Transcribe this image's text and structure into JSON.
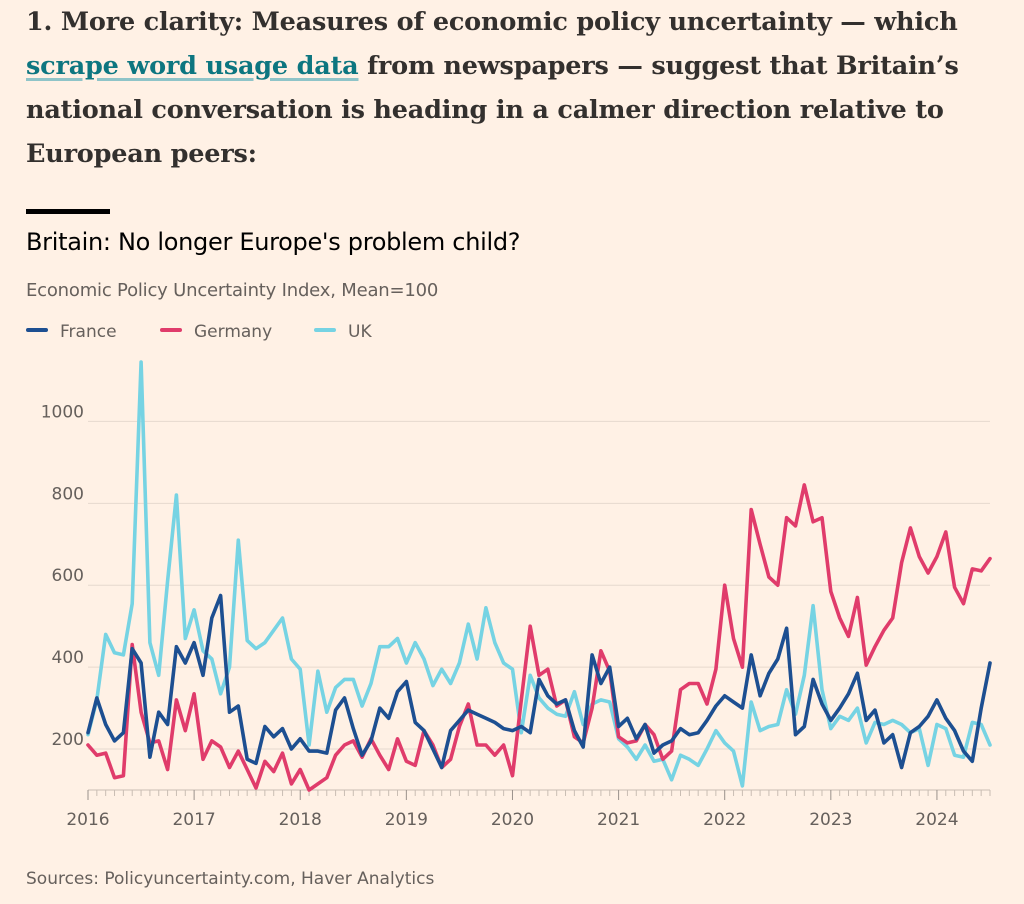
{
  "intro": {
    "before_link": "1. More clarity: Measures of economic policy uncertainty — which ",
    "link_text": "scrape word usage data",
    "after_link": " from newspapers — suggest that Britain’s national conversation is heading in a calmer direction relative to European peers:"
  },
  "chart_data": {
    "type": "line",
    "title": "Britain: No longer Europe's problem child?",
    "subtitle": "Economic Policy Uncertainty Index, Mean=100",
    "source": "Sources: Policyuncertainty.com, Haver Analytics",
    "xlim": [
      2016.0,
      2024.5
    ],
    "ylim": [
      100,
      1150
    ],
    "yticks": [
      200,
      400,
      600,
      800,
      1000
    ],
    "xticks": [
      2016,
      2017,
      2018,
      2019,
      2020,
      2021,
      2022,
      2023,
      2024
    ],
    "grid": true,
    "legend_position": "top-left",
    "x_start": 2016.0,
    "x_step_months": 1,
    "series": [
      {
        "name": "France",
        "color": "#1d4f91",
        "values": [
          240,
          325,
          260,
          220,
          240,
          445,
          410,
          180,
          290,
          260,
          450,
          410,
          460,
          380,
          520,
          575,
          290,
          305,
          175,
          165,
          255,
          230,
          250,
          200,
          225,
          195,
          195,
          190,
          295,
          325,
          250,
          185,
          220,
          300,
          275,
          340,
          365,
          265,
          245,
          200,
          155,
          245,
          270,
          295,
          285,
          275,
          265,
          250,
          245,
          255,
          240,
          370,
          330,
          310,
          320,
          245,
          205,
          430,
          360,
          400,
          255,
          275,
          225,
          260,
          190,
          210,
          220,
          250,
          235,
          240,
          270,
          305,
          330,
          315,
          300,
          430,
          330,
          385,
          420,
          495,
          235,
          255,
          370,
          310,
          270,
          300,
          335,
          385,
          270,
          295,
          215,
          235,
          155,
          240,
          255,
          280,
          320,
          275,
          245,
          195,
          170,
          300,
          410
        ]
      },
      {
        "name": "Germany",
        "color": "#e03c6b",
        "values": [
          210,
          185,
          190,
          130,
          135,
          455,
          290,
          215,
          220,
          150,
          320,
          245,
          335,
          175,
          220,
          205,
          155,
          195,
          150,
          105,
          170,
          145,
          190,
          115,
          150,
          100,
          115,
          130,
          185,
          210,
          220,
          180,
          225,
          185,
          150,
          225,
          170,
          160,
          245,
          210,
          155,
          175,
          255,
          310,
          210,
          210,
          185,
          210,
          135,
          320,
          500,
          380,
          395,
          305,
          320,
          230,
          215,
          300,
          440,
          390,
          230,
          215,
          220,
          260,
          235,
          175,
          195,
          345,
          360,
          360,
          310,
          395,
          600,
          470,
          400,
          785,
          700,
          620,
          600,
          765,
          745,
          845,
          755,
          765,
          585,
          520,
          475,
          570,
          405,
          450,
          490,
          520,
          655,
          740,
          670,
          630,
          670,
          730,
          595,
          555,
          640,
          635,
          665
        ]
      },
      {
        "name": "UK",
        "color": "#76d3e3",
        "values": [
          235,
          320,
          480,
          435,
          430,
          555,
          1145,
          460,
          380,
          610,
          820,
          470,
          540,
          440,
          420,
          335,
          400,
          710,
          465,
          445,
          460,
          490,
          520,
          420,
          395,
          210,
          390,
          290,
          350,
          370,
          370,
          305,
          360,
          450,
          450,
          470,
          410,
          460,
          420,
          355,
          395,
          360,
          410,
          505,
          420,
          545,
          460,
          410,
          395,
          240,
          380,
          325,
          300,
          285,
          280,
          340,
          260,
          310,
          320,
          315,
          225,
          205,
          175,
          210,
          170,
          175,
          125,
          185,
          175,
          160,
          200,
          245,
          215,
          195,
          110,
          315,
          245,
          255,
          260,
          345,
          285,
          380,
          550,
          345,
          250,
          280,
          270,
          300,
          215,
          265,
          260,
          270,
          260,
          240,
          250,
          160,
          260,
          250,
          185,
          180,
          265,
          260,
          210
        ]
      }
    ]
  }
}
